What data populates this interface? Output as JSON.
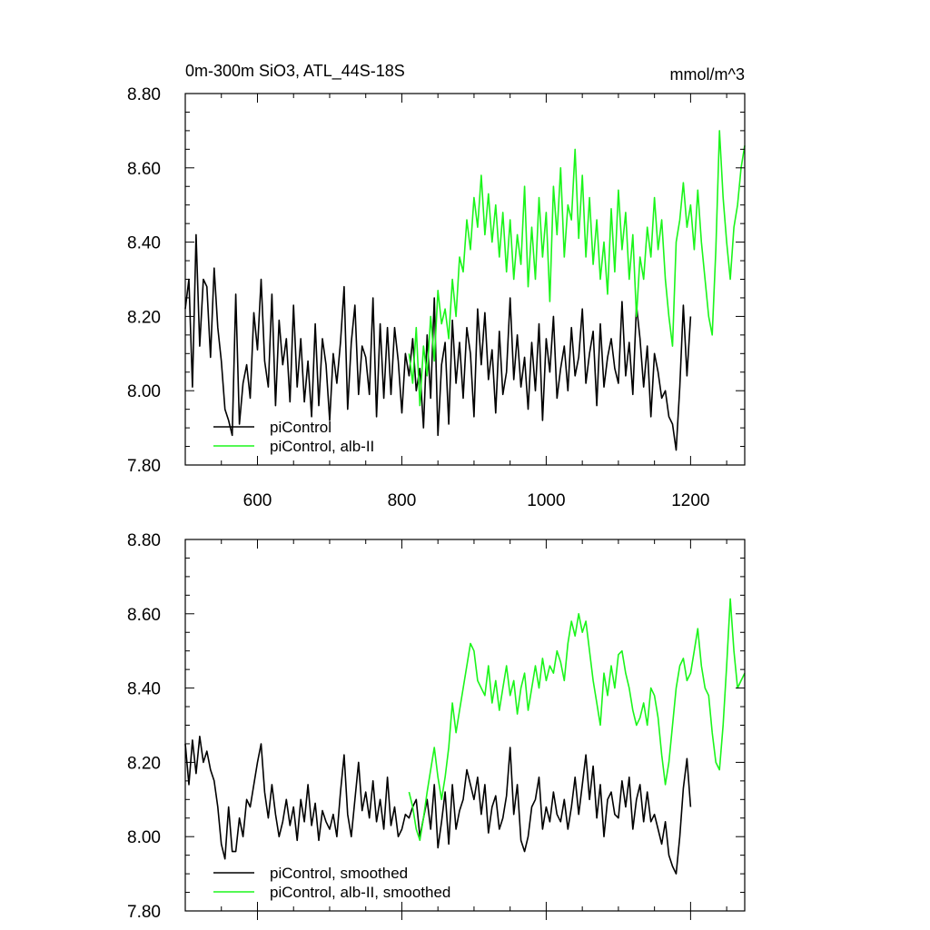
{
  "chart_data": [
    {
      "type": "line",
      "title": "0m-300m SiO3, ATL_44S-18S",
      "units": "mmol/m^3",
      "xlabel": "",
      "ylabel": "",
      "xlim": [
        500,
        1275
      ],
      "ylim": [
        7.8,
        8.8
      ],
      "xticks": [
        600,
        800,
        1000,
        1200
      ],
      "xtick_labels": [
        "600",
        "800",
        "1000",
        "1200"
      ],
      "yticks": [
        7.8,
        8.0,
        8.2,
        8.4,
        8.6,
        8.8
      ],
      "ytick_labels": [
        "7.80",
        "8.00",
        "8.20",
        "8.40",
        "8.60",
        "8.80"
      ],
      "grid": false,
      "legend": "bottom-left",
      "series": [
        {
          "name": "piControl",
          "color": "#000000",
          "x": [
            500,
            505,
            510,
            515,
            520,
            525,
            530,
            535,
            540,
            545,
            550,
            555,
            560,
            565,
            570,
            575,
            580,
            585,
            590,
            595,
            600,
            605,
            610,
            615,
            620,
            625,
            630,
            635,
            640,
            645,
            650,
            655,
            660,
            665,
            670,
            675,
            680,
            685,
            690,
            695,
            700,
            705,
            710,
            715,
            720,
            725,
            730,
            735,
            740,
            745,
            750,
            755,
            760,
            765,
            770,
            775,
            780,
            785,
            790,
            795,
            800,
            805,
            810,
            815,
            820,
            825,
            830,
            835,
            840,
            845,
            850,
            855,
            860,
            865,
            870,
            875,
            880,
            885,
            890,
            895,
            900,
            905,
            910,
            915,
            920,
            925,
            930,
            935,
            940,
            945,
            950,
            955,
            960,
            965,
            970,
            975,
            980,
            985,
            990,
            995,
            1000,
            1005,
            1010,
            1015,
            1020,
            1025,
            1030,
            1035,
            1040,
            1045,
            1050,
            1055,
            1060,
            1065,
            1070,
            1075,
            1080,
            1085,
            1090,
            1095,
            1100,
            1105,
            1110,
            1115,
            1120,
            1125,
            1130,
            1135,
            1140,
            1145,
            1150,
            1155,
            1160,
            1165,
            1170,
            1175,
            1180,
            1185,
            1190,
            1195,
            1200
          ],
          "y": [
            8.22,
            8.3,
            8.01,
            8.42,
            8.12,
            8.3,
            8.28,
            8.09,
            8.33,
            8.17,
            8.08,
            7.95,
            7.92,
            7.88,
            8.26,
            7.91,
            8.02,
            8.07,
            7.98,
            8.21,
            8.11,
            8.3,
            8.08,
            8.01,
            8.26,
            7.96,
            8.19,
            8.07,
            8.14,
            7.97,
            8.23,
            8.01,
            8.14,
            7.97,
            8.08,
            7.93,
            8.18,
            7.96,
            8.14,
            8.07,
            7.92,
            8.1,
            8.02,
            8.13,
            8.28,
            7.95,
            8.13,
            8.23,
            7.99,
            8.12,
            8.09,
            7.99,
            8.25,
            7.93,
            8.18,
            7.98,
            8.17,
            7.99,
            8.17,
            8.08,
            7.94,
            8.1,
            8.04,
            8.14,
            8.0,
            8.06,
            7.9,
            8.15,
            7.98,
            8.25,
            7.88,
            8.07,
            8.13,
            7.91,
            8.19,
            8.02,
            8.13,
            7.98,
            8.17,
            8.1,
            7.93,
            8.22,
            8.07,
            8.21,
            8.03,
            8.11,
            7.94,
            8.16,
            7.99,
            8.05,
            8.25,
            8.03,
            8.15,
            8.01,
            8.09,
            7.95,
            8.13,
            8.0,
            8.18,
            7.92,
            8.14,
            8.05,
            8.2,
            7.98,
            8.06,
            8.12,
            8.0,
            8.17,
            8.04,
            8.09,
            8.22,
            8.02,
            8.1,
            8.16,
            7.96,
            8.18,
            8.01,
            8.09,
            8.14,
            8.06,
            8.02,
            8.24,
            8.04,
            8.13,
            7.99,
            8.23,
            8.14,
            8.01,
            8.12,
            7.93,
            8.1,
            8.05,
            7.98,
            8.0,
            7.93,
            7.91,
            7.84,
            8.01,
            8.23,
            8.04,
            8.2
          ]
        },
        {
          "name": "piControl, alb-II",
          "color": "#1bf51b",
          "x": [
            810,
            815,
            820,
            825,
            830,
            835,
            840,
            845,
            850,
            855,
            860,
            865,
            870,
            875,
            880,
            885,
            890,
            895,
            900,
            905,
            910,
            915,
            920,
            925,
            930,
            935,
            940,
            945,
            950,
            955,
            960,
            965,
            970,
            975,
            980,
            985,
            990,
            995,
            1000,
            1005,
            1010,
            1015,
            1020,
            1025,
            1030,
            1035,
            1040,
            1045,
            1050,
            1055,
            1060,
            1065,
            1070,
            1075,
            1080,
            1085,
            1090,
            1095,
            1100,
            1105,
            1110,
            1115,
            1120,
            1125,
            1130,
            1135,
            1140,
            1145,
            1150,
            1155,
            1160,
            1165,
            1170,
            1175,
            1180,
            1185,
            1190,
            1195,
            1200,
            1205,
            1210,
            1215,
            1220,
            1225,
            1230,
            1235,
            1240,
            1245,
            1250,
            1255,
            1260,
            1265,
            1270,
            1275
          ],
          "y": [
            8.1,
            8.02,
            8.17,
            7.96,
            8.12,
            8.04,
            8.2,
            8.08,
            8.27,
            8.18,
            8.22,
            8.14,
            8.3,
            8.2,
            8.36,
            8.32,
            8.46,
            8.38,
            8.52,
            8.44,
            8.58,
            8.42,
            8.53,
            8.4,
            8.5,
            8.36,
            8.48,
            8.32,
            8.46,
            8.3,
            8.42,
            8.34,
            8.55,
            8.28,
            8.44,
            8.3,
            8.52,
            8.36,
            8.48,
            8.24,
            8.55,
            8.42,
            8.6,
            8.36,
            8.5,
            8.46,
            8.65,
            8.41,
            8.58,
            8.36,
            8.52,
            8.34,
            8.46,
            8.3,
            8.4,
            8.26,
            8.49,
            8.32,
            8.54,
            8.38,
            8.48,
            8.3,
            8.42,
            8.2,
            8.36,
            8.3,
            8.44,
            8.36,
            8.52,
            8.38,
            8.46,
            8.3,
            8.2,
            8.12,
            8.4,
            8.46,
            8.56,
            8.44,
            8.5,
            8.38,
            8.54,
            8.4,
            8.3,
            8.2,
            8.15,
            8.38,
            8.7,
            8.52,
            8.4,
            8.3,
            8.44,
            8.5,
            8.6,
            8.66
          ]
        }
      ]
    },
    {
      "type": "line",
      "title": "",
      "xlabel": "",
      "ylabel": "",
      "xlim": [
        500,
        1275
      ],
      "ylim": [
        7.8,
        8.8
      ],
      "xticks": [
        600,
        800,
        1000,
        1200
      ],
      "yticks": [
        7.8,
        8.0,
        8.2,
        8.4,
        8.6,
        8.8
      ],
      "ytick_labels": [
        "7.80",
        "8.00",
        "8.20",
        "8.40",
        "8.60",
        "8.80"
      ],
      "grid": false,
      "legend": "bottom-left",
      "series": [
        {
          "name": "piControl, smoothed",
          "color": "#000000",
          "x": [
            500,
            505,
            510,
            515,
            520,
            525,
            530,
            535,
            540,
            545,
            550,
            555,
            560,
            565,
            570,
            575,
            580,
            585,
            590,
            595,
            600,
            605,
            610,
            615,
            620,
            625,
            630,
            635,
            640,
            645,
            650,
            655,
            660,
            665,
            670,
            675,
            680,
            685,
            690,
            695,
            700,
            705,
            710,
            715,
            720,
            725,
            730,
            735,
            740,
            745,
            750,
            755,
            760,
            765,
            770,
            775,
            780,
            785,
            790,
            795,
            800,
            805,
            810,
            815,
            820,
            825,
            830,
            835,
            840,
            845,
            850,
            855,
            860,
            865,
            870,
            875,
            880,
            885,
            890,
            895,
            900,
            905,
            910,
            915,
            920,
            925,
            930,
            935,
            940,
            945,
            950,
            955,
            960,
            965,
            970,
            975,
            980,
            985,
            990,
            995,
            1000,
            1005,
            1010,
            1015,
            1020,
            1025,
            1030,
            1035,
            1040,
            1045,
            1050,
            1055,
            1060,
            1065,
            1070,
            1075,
            1080,
            1085,
            1090,
            1095,
            1100,
            1105,
            1110,
            1115,
            1120,
            1125,
            1130,
            1135,
            1140,
            1145,
            1150,
            1155,
            1160,
            1165,
            1170,
            1175,
            1180,
            1185,
            1190,
            1195,
            1200
          ],
          "y": [
            8.25,
            8.14,
            8.26,
            8.17,
            8.27,
            8.2,
            8.23,
            8.18,
            8.15,
            8.08,
            7.98,
            7.94,
            8.08,
            7.96,
            7.96,
            8.05,
            8.0,
            8.1,
            8.08,
            8.14,
            8.2,
            8.25,
            8.12,
            8.05,
            8.14,
            8.06,
            8.0,
            8.04,
            8.1,
            8.03,
            8.08,
            7.99,
            8.1,
            8.04,
            8.14,
            8.03,
            8.09,
            7.99,
            8.07,
            8.04,
            8.02,
            8.06,
            8.0,
            8.12,
            8.22,
            8.06,
            8.0,
            8.1,
            8.2,
            8.07,
            8.12,
            8.05,
            8.15,
            8.04,
            8.1,
            8.02,
            8.16,
            8.03,
            8.08,
            8.0,
            8.02,
            8.06,
            8.05,
            8.08,
            8.1,
            8.0,
            8.05,
            8.1,
            8.02,
            8.14,
            7.97,
            8.04,
            8.12,
            7.98,
            8.14,
            8.02,
            8.07,
            8.1,
            8.18,
            8.14,
            8.1,
            8.16,
            8.06,
            8.14,
            8.01,
            8.08,
            8.11,
            8.02,
            8.05,
            8.11,
            8.24,
            8.06,
            8.14,
            7.99,
            7.96,
            8.0,
            8.08,
            8.1,
            8.16,
            8.02,
            8.08,
            8.04,
            8.12,
            8.06,
            8.04,
            8.1,
            8.02,
            8.08,
            8.16,
            8.06,
            8.14,
            8.22,
            8.1,
            8.19,
            8.05,
            8.14,
            8.0,
            8.1,
            8.12,
            8.06,
            8.05,
            8.15,
            8.08,
            8.16,
            8.02,
            8.1,
            8.14,
            8.04,
            8.12,
            8.04,
            8.06,
            8.02,
            7.98,
            8.04,
            7.95,
            7.92,
            7.9,
            8.0,
            8.13,
            8.21,
            8.08
          ]
        },
        {
          "name": "piControl, alb-II, smoothed",
          "color": "#1bf51b",
          "x": [
            810,
            815,
            820,
            825,
            830,
            835,
            840,
            845,
            850,
            855,
            860,
            865,
            870,
            875,
            880,
            885,
            890,
            895,
            900,
            905,
            910,
            915,
            920,
            925,
            930,
            935,
            940,
            945,
            950,
            955,
            960,
            965,
            970,
            975,
            980,
            985,
            990,
            995,
            1000,
            1005,
            1010,
            1015,
            1020,
            1025,
            1030,
            1035,
            1040,
            1045,
            1050,
            1055,
            1060,
            1065,
            1070,
            1075,
            1080,
            1085,
            1090,
            1095,
            1100,
            1105,
            1110,
            1115,
            1120,
            1125,
            1130,
            1135,
            1140,
            1145,
            1150,
            1155,
            1160,
            1165,
            1170,
            1175,
            1180,
            1185,
            1190,
            1195,
            1200,
            1205,
            1210,
            1215,
            1220,
            1225,
            1230,
            1235,
            1240,
            1245,
            1250,
            1255,
            1260,
            1265,
            1270,
            1275
          ],
          "y": [
            8.12,
            8.08,
            8.02,
            7.99,
            8.05,
            8.12,
            8.18,
            8.24,
            8.16,
            8.1,
            8.16,
            8.24,
            8.36,
            8.28,
            8.34,
            8.4,
            8.46,
            8.52,
            8.5,
            8.42,
            8.4,
            8.38,
            8.46,
            8.36,
            8.42,
            8.34,
            8.4,
            8.46,
            8.38,
            8.42,
            8.33,
            8.4,
            8.44,
            8.34,
            8.4,
            8.46,
            8.4,
            8.48,
            8.42,
            8.46,
            8.44,
            8.5,
            8.47,
            8.42,
            8.52,
            8.58,
            8.54,
            8.6,
            8.55,
            8.58,
            8.5,
            8.42,
            8.36,
            8.3,
            8.44,
            8.38,
            8.46,
            8.4,
            8.49,
            8.5,
            8.44,
            8.4,
            8.34,
            8.3,
            8.32,
            8.36,
            8.3,
            8.4,
            8.38,
            8.32,
            8.22,
            8.14,
            8.2,
            8.3,
            8.4,
            8.46,
            8.48,
            8.42,
            8.44,
            8.5,
            8.56,
            8.46,
            8.4,
            8.38,
            8.28,
            8.2,
            8.18,
            8.3,
            8.46,
            8.64,
            8.5,
            8.4,
            8.42,
            8.44
          ]
        }
      ]
    }
  ]
}
